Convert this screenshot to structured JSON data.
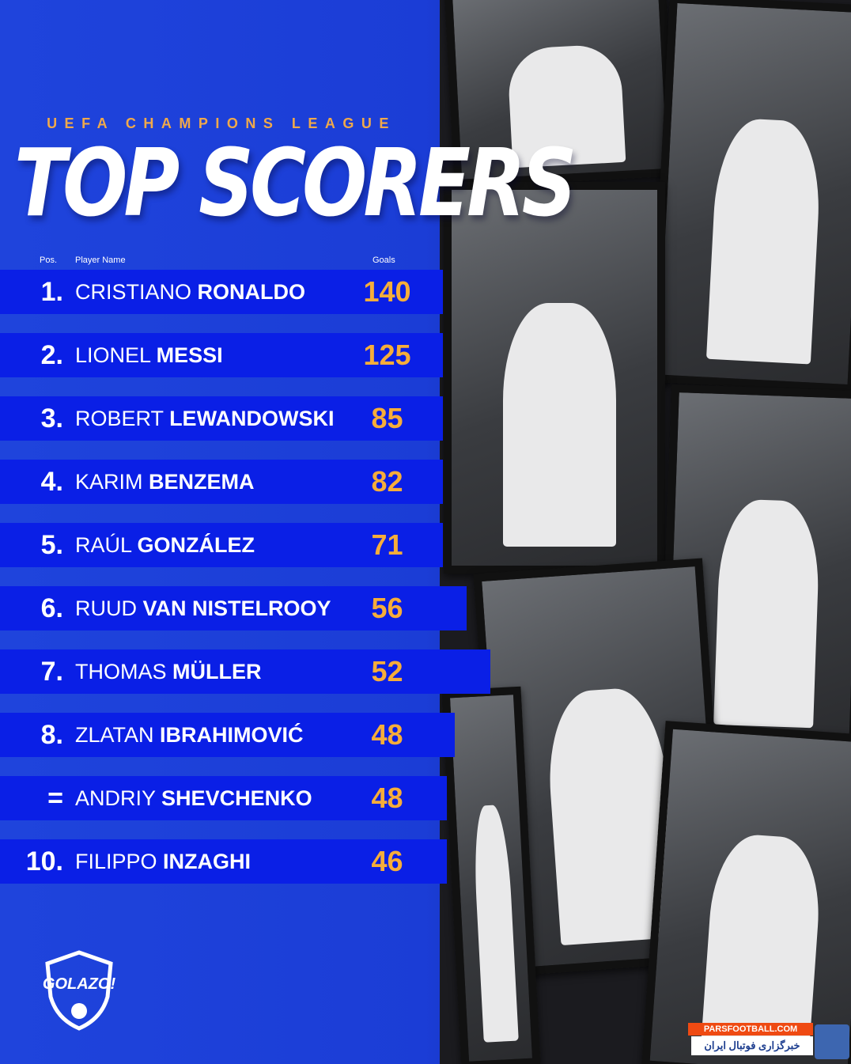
{
  "header": {
    "subtitle": "UEFA CHAMPIONS LEAGUE",
    "title": "TOP SCORERS"
  },
  "columns": {
    "pos": "Pos.",
    "player": "Player Name",
    "goals": "Goals"
  },
  "rows": [
    {
      "pos": "1.",
      "first": "CRISTIANO",
      "last": "RONALDO",
      "goals": "140"
    },
    {
      "pos": "2.",
      "first": "LIONEL",
      "last": "MESSI",
      "goals": "125"
    },
    {
      "pos": "3.",
      "first": "ROBERT",
      "last": "LEWANDOWSKI",
      "goals": "85"
    },
    {
      "pos": "4.",
      "first": "KARIM",
      "last": "BENZEMA",
      "goals": "82"
    },
    {
      "pos": "5.",
      "first": "RAÚL",
      "last": "GONZÁLEZ",
      "goals": "71"
    },
    {
      "pos": "6.",
      "first": "RUUD",
      "last": "VAN NISTELROOY",
      "goals": "56"
    },
    {
      "pos": "7.",
      "first": "THOMAS",
      "last": "MÜLLER",
      "goals": "52"
    },
    {
      "pos": "8.",
      "first": "ZLATAN",
      "last": "IBRAHIMOVIĆ",
      "goals": "48"
    },
    {
      "pos": "=",
      "first": "ANDRIY",
      "last": "SHEVCHENKO",
      "goals": "48"
    },
    {
      "pos": "10.",
      "first": "FILIPPO",
      "last": "INZAGHI",
      "goals": "46"
    }
  ],
  "logo": {
    "text": "GOLAZO!"
  },
  "watermark": {
    "top": "PARSFOOTBALL.COM",
    "bottom": "خبرگزاری فوتبال ایران"
  },
  "colors": {
    "background": "#1c3ed8",
    "row": "#0a1fe6",
    "accent": "#f6ad3a"
  }
}
